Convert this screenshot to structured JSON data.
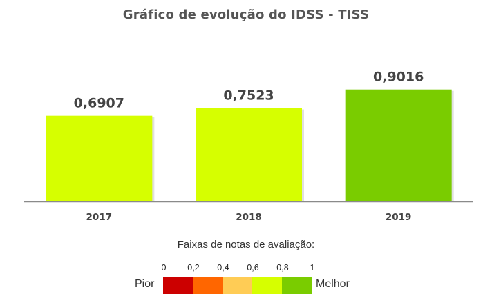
{
  "chart_data": {
    "type": "bar",
    "title": "Gráfico de evolução do IDSS - TISS",
    "categories": [
      "2017",
      "2018",
      "2019"
    ],
    "values": [
      0.6907,
      0.7523,
      0.9016
    ],
    "value_labels": [
      "0,6907",
      "0,7523",
      "0,9016"
    ],
    "bar_colors": [
      "#d6ff00",
      "#d6ff00",
      "#7acc00"
    ],
    "ylim": [
      0,
      1
    ],
    "grid": false,
    "legend": {
      "heading": "Faixas de notas de avaliação:",
      "ticks": [
        "0",
        "0,2",
        "0,4",
        "0,6",
        "0,8",
        "1"
      ],
      "colors": [
        "#cc0000",
        "#ff6600",
        "#ffcc55",
        "#d6ff00",
        "#7acc00"
      ],
      "left_label": "Pior",
      "right_label": "Melhor",
      "placement": "bottom"
    }
  }
}
